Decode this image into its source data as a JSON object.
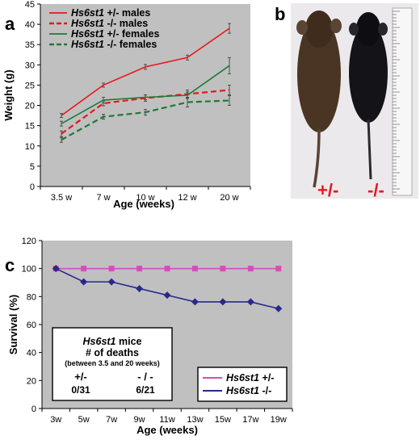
{
  "panel_labels": {
    "a": "a",
    "b": "b",
    "c": "c"
  },
  "photo_labels": {
    "left": "+/-",
    "right": "-/-",
    "color": "#e8171b"
  },
  "colors": {
    "red": "#e8171b",
    "green": "#1d7a37",
    "magenta": "#d24fb4",
    "navy": "#28288c",
    "plot_bg": "#c0c0c0"
  },
  "chart_data": [
    {
      "type": "line",
      "xlabel": "Age (weeks)",
      "ylabel": "Weight (g)",
      "categories": [
        "3.5 w",
        "7 w",
        "10 w",
        "12 w",
        "20 w"
      ],
      "ylim": [
        0,
        45
      ],
      "yticks": [
        0,
        5,
        10,
        15,
        20,
        25,
        30,
        35,
        40,
        45
      ],
      "grid": false,
      "legend_position": "top-left",
      "series": [
        {
          "name": "Hs6st1 +/- males",
          "name_italic": "Hs6st1",
          "name_rest": " +/- males",
          "color": "#e8171b",
          "dash": false,
          "values": [
            17.5,
            25,
            29.5,
            31.8,
            39
          ],
          "errors": [
            0.5,
            0.5,
            0.6,
            0.6,
            1.2
          ]
        },
        {
          "name": "Hs6st1 -/- males",
          "name_italic": "Hs6st1",
          "name_rest": " -/- males",
          "color": "#e8171b",
          "dash": true,
          "values": [
            13,
            20.5,
            21.8,
            22.8,
            23.8
          ],
          "errors": [
            0.7,
            0.6,
            0.8,
            1.0,
            1.2
          ]
        },
        {
          "name": "Hs6st1 +/- females",
          "name_italic": "Hs6st1",
          "name_rest": " +/- females",
          "color": "#1d7a37",
          "dash": false,
          "values": [
            15.5,
            21.3,
            22,
            22.5,
            29.8
          ],
          "errors": [
            0.6,
            0.7,
            0.6,
            0.8,
            2.0
          ]
        },
        {
          "name": "Hs6st1 -/- females",
          "name_italic": "Hs6st1",
          "name_rest": " -/- females",
          "color": "#1d7a37",
          "dash": true,
          "values": [
            11.5,
            17.2,
            18.3,
            20.8,
            21.2
          ],
          "errors": [
            0.6,
            0.6,
            0.7,
            1.2,
            1.2
          ]
        }
      ]
    },
    {
      "type": "line",
      "xlabel": "Age (weeks)",
      "ylabel": "Survival (%)",
      "categories": [
        "3w",
        "5w",
        "7w",
        "9w",
        "11w",
        "13w",
        "15w",
        "17w",
        "19w"
      ],
      "ylim": [
        0,
        120
      ],
      "yticks": [
        0,
        20,
        40,
        60,
        80,
        100,
        120
      ],
      "grid": false,
      "legend_position": "bottom-right",
      "series": [
        {
          "name": "Hs6st1 +/-",
          "name_italic": "Hs6st1",
          "name_rest": " +/-",
          "color": "#d24fb4",
          "marker": "square",
          "values": [
            100,
            100,
            100,
            100,
            100,
            100,
            100,
            100,
            100
          ]
        },
        {
          "name": "Hs6st1 -/-",
          "name_italic": "Hs6st1",
          "name_rest": " -/-",
          "color": "#28288c",
          "marker": "diamond",
          "values": [
            100,
            90.5,
            90.5,
            85.7,
            81,
            76.2,
            76.2,
            76.2,
            71.4
          ]
        }
      ],
      "annotation_box": {
        "title_italic": "Hs6st1",
        "title_rest": " mice",
        "line2": "# of deaths",
        "line3": "(between 3.5 and 20 weeks)",
        "col1_head": "+/-",
        "col1_value": "0/31",
        "col2_head": "- / -",
        "col2_value": "6/21"
      }
    }
  ]
}
